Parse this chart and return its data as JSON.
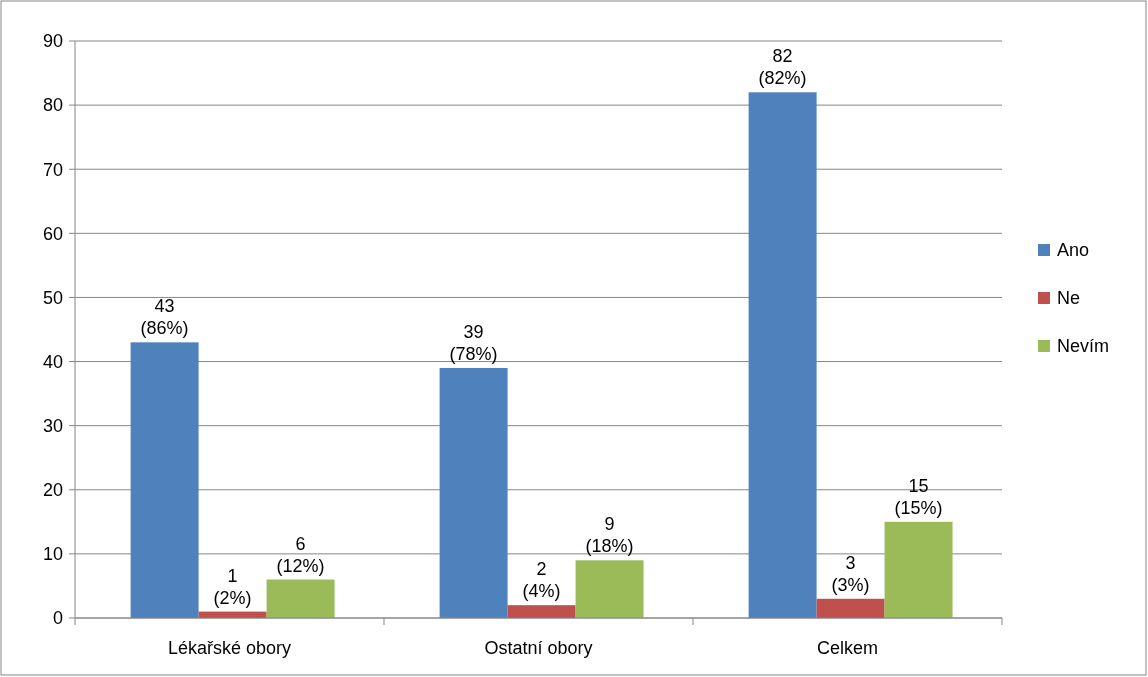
{
  "chart_data": {
    "type": "bar",
    "categories": [
      "Lékařské obory",
      "Ostatní obory",
      "Celkem"
    ],
    "series": [
      {
        "name": "Ano",
        "color": "#4f81bd",
        "values": [
          43,
          39,
          82
        ],
        "value_labels": [
          "43\n(86%)",
          "39\n(78%)",
          "82\n(82%)"
        ]
      },
      {
        "name": "Ne",
        "color": "#c0504d",
        "values": [
          1,
          2,
          3
        ],
        "value_labels": [
          "1\n(2%)",
          "2\n(4%)",
          "3\n(3%)"
        ]
      },
      {
        "name": "Nevím",
        "color": "#9bbb59",
        "values": [
          6,
          9,
          15
        ],
        "value_labels": [
          "6\n(12%)",
          "9\n(18%)",
          "15\n(15%)"
        ]
      }
    ],
    "ylim": [
      0,
      90
    ],
    "yticks": [
      0,
      10,
      20,
      30,
      40,
      50,
      60,
      70,
      80,
      90
    ],
    "grid": "y",
    "legend": "right"
  }
}
